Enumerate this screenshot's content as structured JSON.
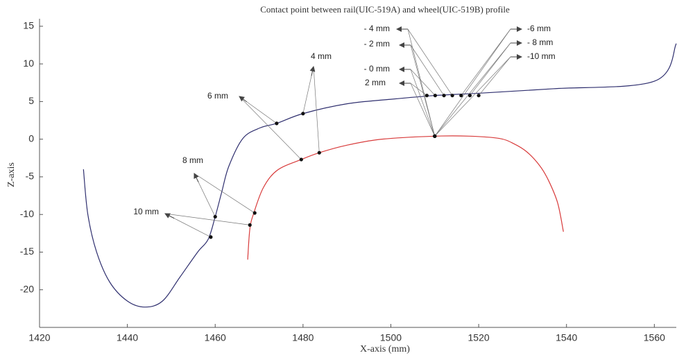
{
  "chart_data": {
    "type": "line",
    "title": "Contact point between rail(UIC-519A) and wheel(UIC-519B) profile",
    "x_label": "X-axis (mm)",
    "y_label": "Z-axis",
    "xlim": [
      1420,
      1565
    ],
    "ylim": [
      -25,
      16
    ],
    "xticks": [
      1420,
      1440,
      1460,
      1480,
      1500,
      1520,
      1540,
      1560
    ],
    "yticks": [
      -20,
      -15,
      -10,
      -5,
      0,
      5,
      10,
      15
    ],
    "series": [
      {
        "color": "#2e2e6e",
        "x": [
          1430,
          1431,
          1433,
          1436,
          1440,
          1444,
          1448,
          1452,
          1456,
          1458.4,
          1460,
          1461.5,
          1463.1,
          1466.3,
          1470.2,
          1474,
          1480,
          1490,
          1500,
          1510,
          1520,
          1537,
          1560,
          1565
        ],
        "values": [
          -4,
          -10,
          -15,
          -19,
          -21.5,
          -22.3,
          -21.5,
          -18.3,
          -15,
          -13.3,
          -10.3,
          -7,
          -3.6,
          0.1,
          1.5,
          2.1,
          3.4,
          4.7,
          5.3,
          5.8,
          6.1,
          6.7,
          7.7,
          12.7
        ]
      },
      {
        "color": "#d83a3a",
        "x": [
          1467.4,
          1467.9,
          1468.8,
          1471,
          1474.2,
          1479.6,
          1483.7,
          1490,
          1498,
          1510,
          1518,
          1524.7,
          1528,
          1531,
          1534,
          1536,
          1538,
          1539.3
        ],
        "values": [
          -16,
          -11.9,
          -9.8,
          -6.4,
          -4.1,
          -2.7,
          -1.8,
          -0.8,
          0,
          0.4,
          0.4,
          0.1,
          -0.6,
          -1.7,
          -3.6,
          -5.6,
          -8.5,
          -12.3
        ]
      }
    ],
    "point_color": "#111111",
    "contacts": [
      {
        "label": "4 mm",
        "wheel_x": 1480,
        "wheel_z": 3.4,
        "rail_x": 1483.7,
        "rail_z": -1.8
      },
      {
        "label": "6 mm",
        "wheel_x": 1474,
        "wheel_z": 2.1,
        "rail_x": 1479.6,
        "rail_z": -2.7
      },
      {
        "label": "8 mm",
        "wheel_x": 1460,
        "wheel_z": -10.3,
        "rail_x": 1469,
        "rail_z": -9.8
      },
      {
        "label": "10 mm",
        "wheel_x": 1459,
        "wheel_z": -13,
        "rail_x": 1467.9,
        "rail_z": -11.4
      },
      {
        "label": "- 4 mm",
        "wheel_x": 1514,
        "wheel_z": 5.8,
        "rail_x": 1510,
        "rail_z": 0.4
      },
      {
        "label": "- 2 mm",
        "wheel_x": 1512.1,
        "wheel_z": 5.8,
        "rail_x": 1510,
        "rail_z": 0.4
      },
      {
        "label": "-  0 mm",
        "wheel_x": 1510.1,
        "wheel_z": 5.8,
        "rail_x": 1510,
        "rail_z": 0.4
      },
      {
        "label": "2 mm",
        "wheel_x": 1508.2,
        "wheel_z": 5.8,
        "rail_x": 1510,
        "rail_z": 0.4
      },
      {
        "label": "-6 mm",
        "wheel_x": 1516,
        "wheel_z": 5.8,
        "rail_x": 1510,
        "rail_z": 0.4
      },
      {
        "label": "- 8 mm",
        "wheel_x": 1518,
        "wheel_z": 5.8,
        "rail_x": 1510,
        "rail_z": 0.4
      },
      {
        "label": "-10 mm",
        "wheel_x": 1520,
        "wheel_z": 5.8,
        "rail_x": 1510,
        "rail_z": 0.4
      }
    ]
  }
}
